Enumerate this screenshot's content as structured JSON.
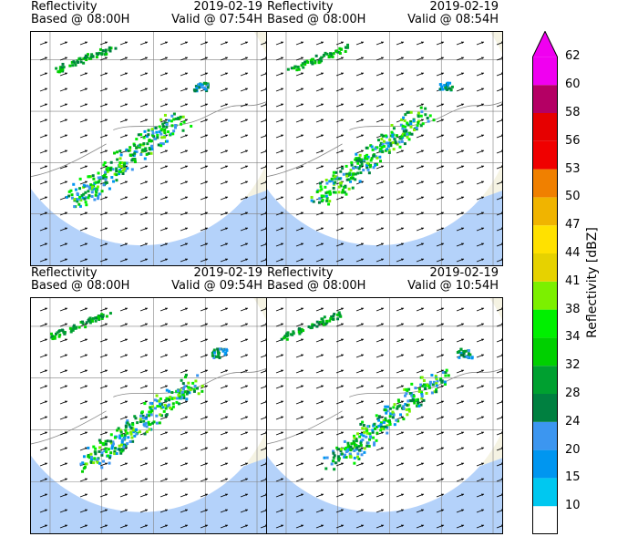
{
  "panels": [
    {
      "title": "Reflectivity",
      "based": "Based @ 08:00H",
      "date": "2019-02-19",
      "valid": "Valid @ 07:54H"
    },
    {
      "title": "Reflectivity",
      "based": "Based @ 08:00H",
      "date": "2019-02-19",
      "valid": "Valid @ 08:54H"
    },
    {
      "title": "Reflectivity",
      "based": "Based @ 08:00H",
      "date": "2019-02-19",
      "valid": "Valid @ 09:54H"
    },
    {
      "title": "Reflectivity",
      "based": "Based @ 08:00H",
      "date": "2019-02-19",
      "valid": "Valid @ 10:54H"
    }
  ],
  "colorbar": {
    "label": "Reflectivity [dBZ]",
    "ticks": [
      "10",
      "15",
      "20",
      "24",
      "28",
      "32",
      "34",
      "38",
      "41",
      "44",
      "47",
      "50",
      "53",
      "56",
      "58",
      "60",
      "62"
    ],
    "colors": [
      "#ffffff",
      "#00c8f0",
      "#0096f0",
      "#3c96f0",
      "#008040",
      "#00a030",
      "#00d000",
      "#00f000",
      "#7cf000",
      "#e6d200",
      "#ffe100",
      "#f0b400",
      "#f08000",
      "#f00000",
      "#e60000",
      "#b40064",
      "#f000f0",
      "#f000f0"
    ]
  },
  "map_colors": {
    "land": "#f5f3e3",
    "sea": "#b4d2fa",
    "coverage": "#ffffff",
    "grid": "#808080"
  }
}
